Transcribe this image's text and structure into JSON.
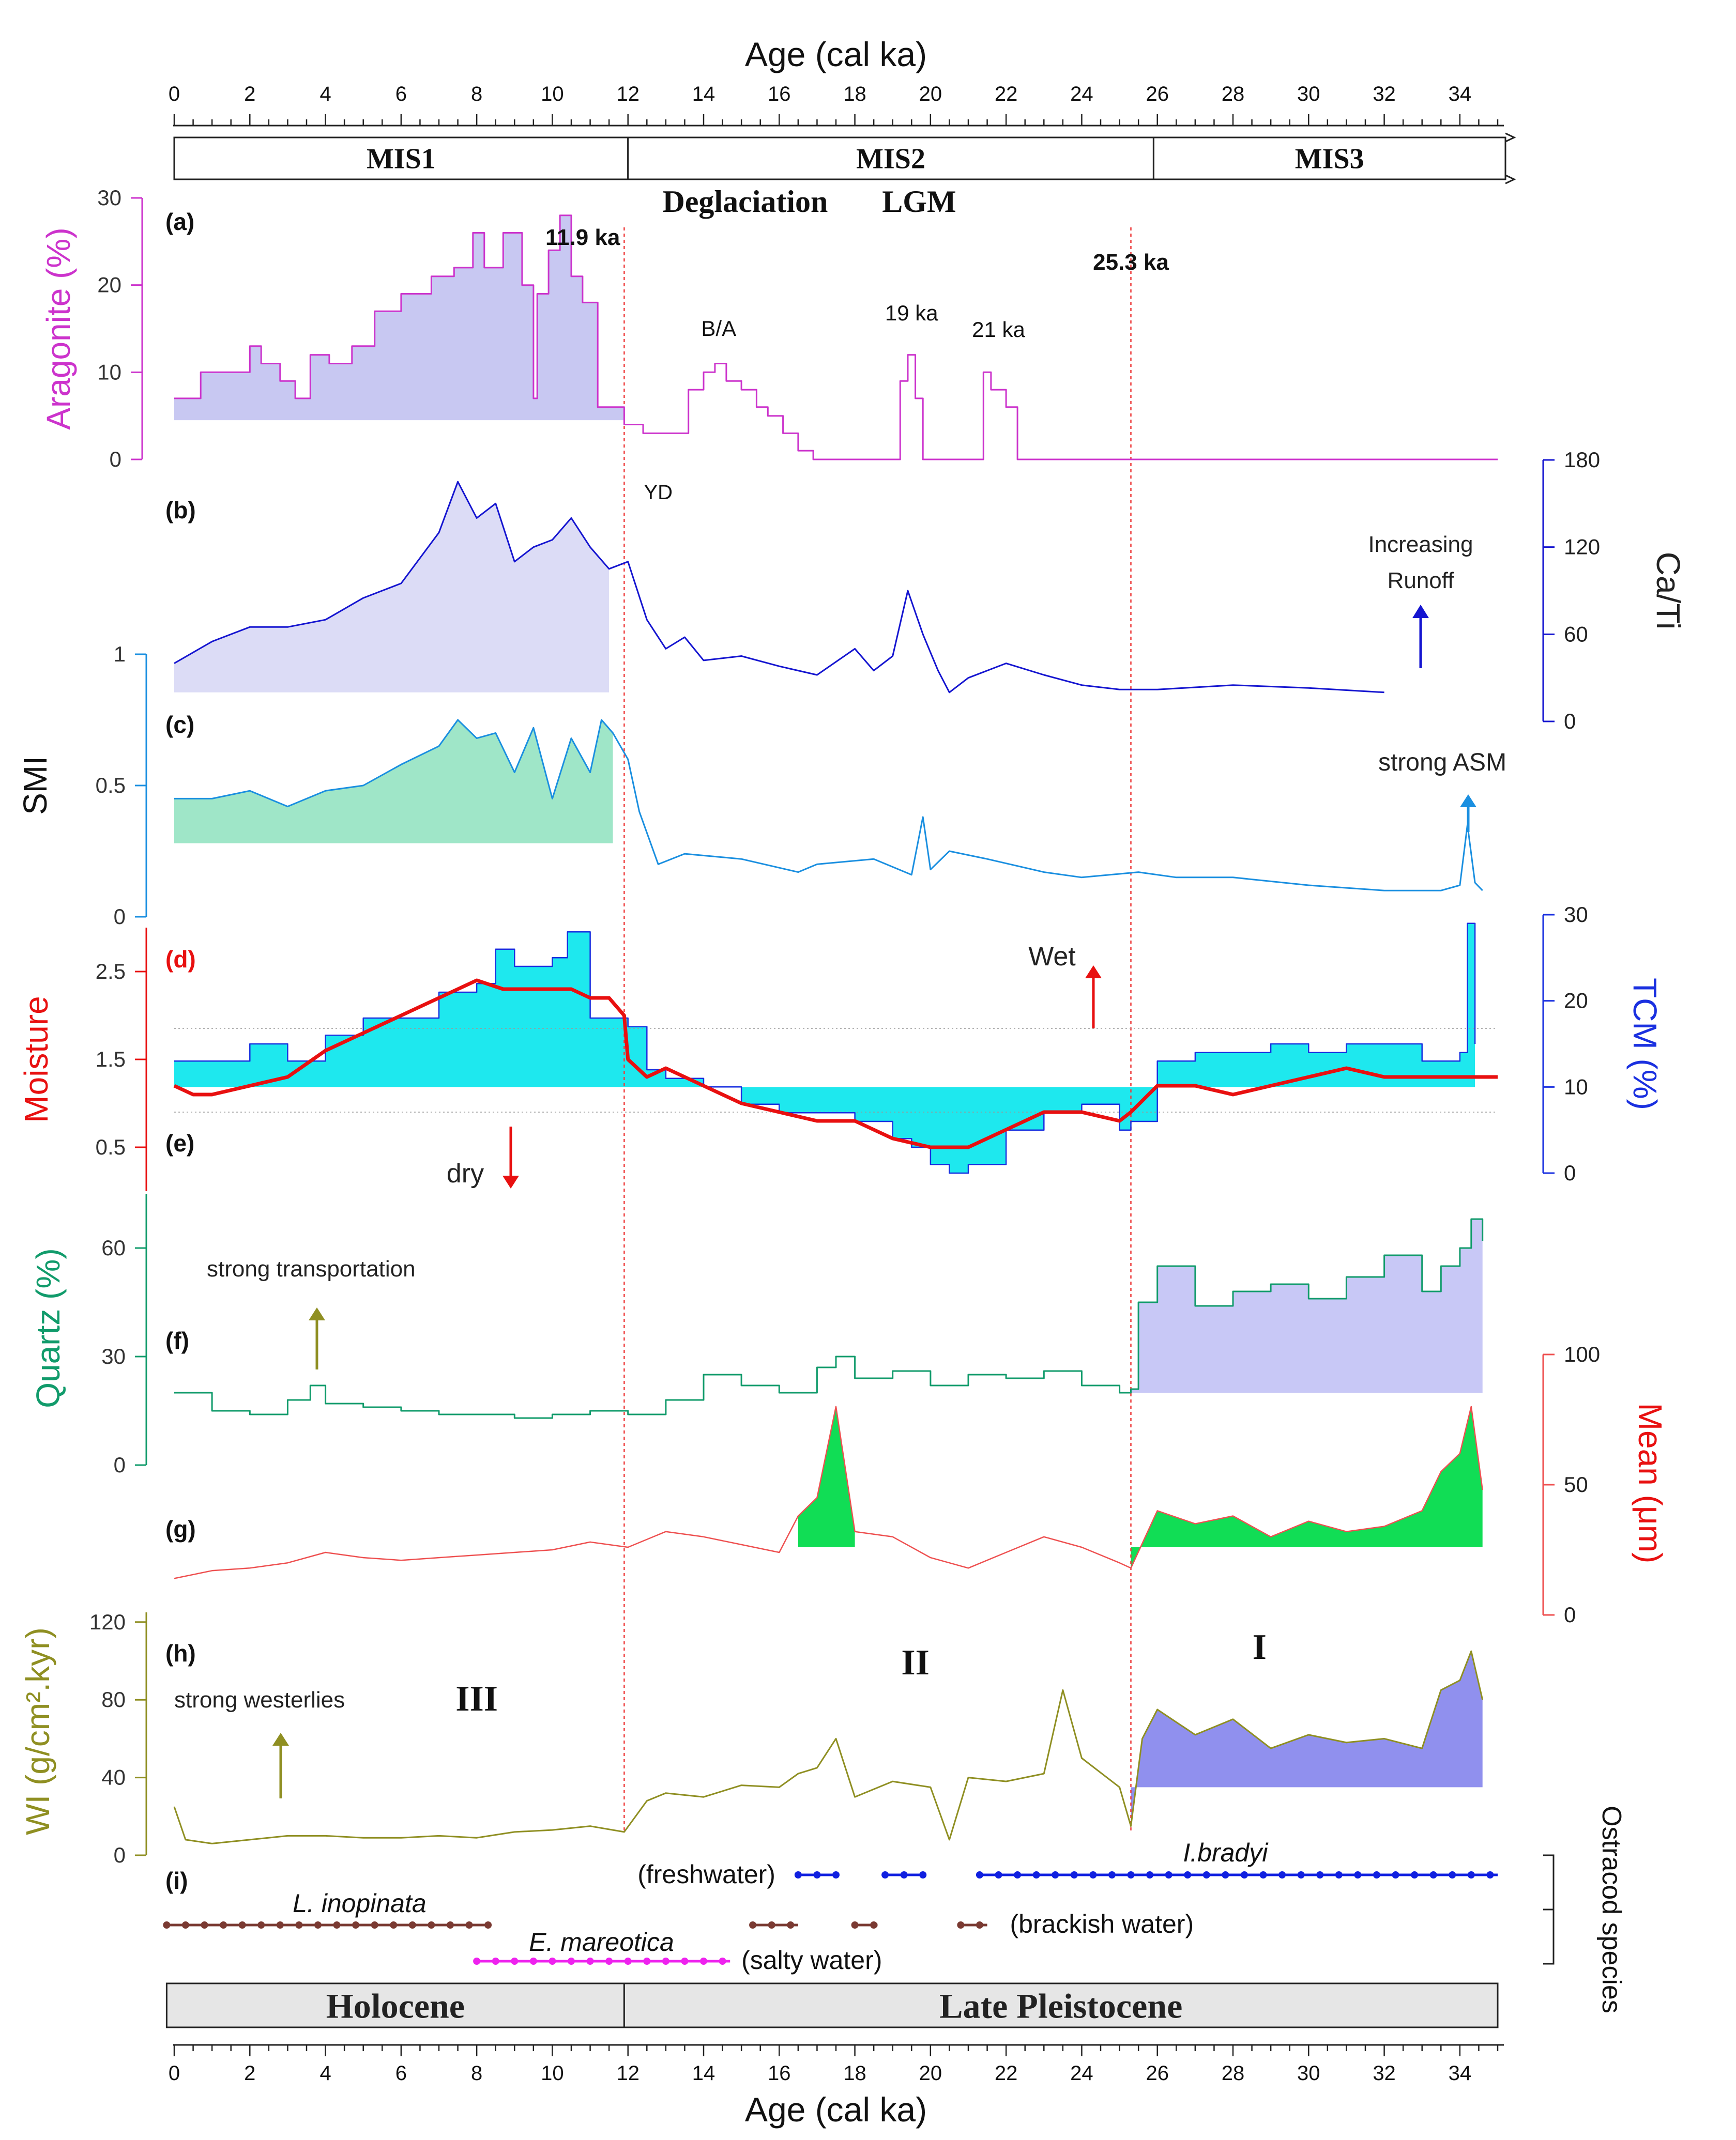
{
  "chart_data": {
    "type": "line",
    "title": "",
    "xlabel": "Age (cal ka)",
    "xlim": [
      0,
      35
    ],
    "x_ticks": [
      "0",
      "2",
      "4",
      "6",
      "8",
      "10",
      "12",
      "14",
      "16",
      "18",
      "20",
      "22",
      "24",
      "26",
      "28",
      "30",
      "32",
      "34"
    ],
    "stages": [
      {
        "label": "MIS1",
        "start": 0,
        "end": 12
      },
      {
        "label": "MIS2",
        "start": 12,
        "end": 25.9
      },
      {
        "label": "MIS3",
        "start": 25.9,
        "end": 35
      }
    ],
    "epochs": [
      {
        "label": "Holocene",
        "start": -0.2,
        "end": 11.9
      },
      {
        "label": "Late Pleistocene",
        "start": 11.9,
        "end": 35
      }
    ],
    "boundaries": [
      {
        "age": 11.9,
        "label": "11.9 ka"
      },
      {
        "age": 25.3,
        "label": "25.3 ka"
      }
    ],
    "top_annotations": [
      "Deglaciation",
      "LGM"
    ],
    "zones": [
      "III",
      "II",
      "I"
    ],
    "panels": [
      {
        "id": "a",
        "tag": "(a)",
        "ylabel": "Aragonite (%)",
        "ylim": [
          0,
          30
        ],
        "yticks": [
          "0",
          "10",
          "20",
          "30"
        ],
        "color": "#cc33cc",
        "fill": "#c8c8f2",
        "annotations": [
          "B/A",
          "19 ka",
          "21 ka",
          "YD"
        ],
        "series": {
          "x": [
            0,
            0.6,
            0.7,
            1.7,
            2.0,
            2.3,
            2.8,
            3.2,
            3.6,
            4.1,
            4.7,
            5.3,
            6.0,
            6.8,
            7.4,
            7.9,
            8.2,
            8.7,
            9.2,
            9.5,
            9.6,
            9.9,
            10.2,
            10.5,
            10.8,
            11.2,
            11.5,
            11.9,
            12.4,
            12.7,
            13.3,
            13.6,
            14.0,
            14.3,
            14.6,
            15.0,
            15.4,
            15.7,
            16.1,
            16.5,
            16.9,
            19.0,
            19.2,
            19.4,
            19.6,
            19.8,
            21.2,
            21.4,
            21.6,
            22.0,
            22.3,
            35.0
          ],
          "y": [
            7,
            7,
            10,
            10,
            13,
            11,
            9,
            7,
            12,
            11,
            13,
            17,
            19,
            21,
            22,
            26,
            22,
            26,
            20,
            7,
            19,
            24,
            28,
            21,
            18,
            6,
            6,
            4,
            3,
            3,
            3,
            8,
            10,
            11,
            9,
            8,
            6,
            5,
            3,
            1,
            0,
            0,
            9,
            12,
            7,
            0,
            0,
            10,
            8,
            6,
            0,
            0
          ]
        }
      },
      {
        "id": "b",
        "tag": "(b)",
        "ylabel": "Ca/Ti",
        "ylim": [
          0,
          180
        ],
        "yticks": [
          "0",
          "60",
          "120",
          "180"
        ],
        "color": "#1515d0",
        "fill": "#dcdcf6",
        "annotations": [
          "Increasing",
          "Runoff"
        ],
        "series": {
          "x": [
            0,
            1.0,
            2.0,
            3.0,
            4.0,
            5.0,
            6.0,
            7.0,
            7.5,
            8.0,
            8.5,
            9.0,
            9.5,
            10.0,
            10.5,
            11.0,
            11.5,
            12.0,
            12.5,
            13.0,
            13.5,
            14.0,
            15.0,
            16.0,
            17.0,
            18.0,
            18.5,
            19.0,
            19.4,
            19.8,
            20.2,
            20.5,
            21.0,
            21.5,
            22.0,
            23.0,
            24.0,
            25.0,
            26.0,
            28.0,
            30.0,
            32.0
          ],
          "y": [
            40,
            55,
            65,
            65,
            70,
            85,
            95,
            130,
            165,
            140,
            150,
            110,
            120,
            125,
            140,
            120,
            105,
            110,
            70,
            50,
            58,
            42,
            45,
            38,
            32,
            50,
            35,
            45,
            90,
            60,
            35,
            20,
            30,
            35,
            40,
            32,
            25,
            22,
            22,
            25,
            23,
            20
          ]
        }
      },
      {
        "id": "c",
        "tag": "(c)",
        "ylabel": "SMI",
        "ylim": [
          0,
          1
        ],
        "yticks": [
          "0",
          "0.5",
          "1"
        ],
        "color": "#1a8fe0",
        "fill": "#9fe6c8",
        "annotations": [
          "strong ASM"
        ],
        "series": {
          "x": [
            0,
            1.0,
            2.0,
            3.0,
            4.0,
            5.0,
            6.0,
            7.0,
            7.5,
            8.0,
            8.5,
            9.0,
            9.5,
            10.0,
            10.5,
            11.0,
            11.3,
            11.6,
            12.0,
            12.3,
            12.8,
            13.5,
            15.0,
            16.5,
            17.0,
            18.5,
            19.5,
            19.8,
            20.0,
            20.5,
            21.5,
            23.0,
            24.0,
            25.5,
            26.5,
            28.0,
            30.0,
            32.0,
            33.5,
            34.0,
            34.2,
            34.4,
            34.6
          ],
          "y": [
            0.45,
            0.45,
            0.48,
            0.42,
            0.48,
            0.5,
            0.58,
            0.65,
            0.75,
            0.68,
            0.7,
            0.55,
            0.72,
            0.45,
            0.68,
            0.55,
            0.75,
            0.7,
            0.6,
            0.4,
            0.2,
            0.24,
            0.22,
            0.17,
            0.2,
            0.22,
            0.16,
            0.38,
            0.18,
            0.25,
            0.22,
            0.17,
            0.15,
            0.17,
            0.15,
            0.15,
            0.12,
            0.1,
            0.1,
            0.12,
            0.35,
            0.13,
            0.1
          ]
        }
      },
      {
        "id": "d",
        "tag": "(d)",
        "ylabel": "Moisture",
        "ylim": [
          0,
          3
        ],
        "yticks": [
          "0.5",
          "1.5",
          "2.5"
        ],
        "color": "#e81010",
        "annotations": [
          "Wet",
          "dry"
        ],
        "series": {
          "x": [
            0,
            0.5,
            1.0,
            2.0,
            3.0,
            4.0,
            5.0,
            6.0,
            7.0,
            8.0,
            8.7,
            9.5,
            10.5,
            11.0,
            11.5,
            11.9,
            12.0,
            12.5,
            13.0,
            14.0,
            15.0,
            16.0,
            17.0,
            18.0,
            19.0,
            20.0,
            21.0,
            22.0,
            23.0,
            24.0,
            25.0,
            25.3,
            26.0,
            27.0,
            28.0,
            29.0,
            30.0,
            31.0,
            32.0,
            33.0,
            34.0,
            35.0
          ],
          "y": [
            1.2,
            1.1,
            1.1,
            1.2,
            1.3,
            1.6,
            1.8,
            2.0,
            2.2,
            2.4,
            2.3,
            2.3,
            2.3,
            2.2,
            2.2,
            2.0,
            1.5,
            1.3,
            1.4,
            1.2,
            1.0,
            0.9,
            0.8,
            0.8,
            0.6,
            0.5,
            0.5,
            0.7,
            0.9,
            0.9,
            0.8,
            0.9,
            1.2,
            1.2,
            1.1,
            1.2,
            1.3,
            1.4,
            1.3,
            1.3,
            1.3,
            1.3
          ]
        }
      },
      {
        "id": "e",
        "tag": "(e)",
        "ylabel": "TCM (%)",
        "ylim": [
          0,
          30
        ],
        "yticks": [
          "0",
          "10",
          "20",
          "30"
        ],
        "color": "#1a30e0",
        "fill": "#1ee8ee",
        "series": {
          "x": [
            0,
            1.0,
            2.0,
            3.0,
            4.0,
            5.0,
            6.0,
            7.0,
            8.0,
            8.5,
            9.0,
            10.0,
            10.4,
            11.0,
            12.0,
            12.5,
            13.0,
            14.0,
            15.0,
            16.0,
            17.0,
            18.0,
            19.0,
            19.5,
            20.0,
            20.5,
            21.0,
            22.0,
            23.0,
            24.0,
            25.0,
            25.3,
            26.0,
            27.0,
            28.0,
            29.0,
            30.0,
            31.0,
            32.0,
            33.0,
            34.0,
            34.2,
            34.4
          ],
          "y": [
            13,
            13,
            15,
            13,
            16,
            18,
            18,
            21,
            22,
            26,
            24,
            25,
            28,
            18,
            17,
            12,
            11,
            10,
            8,
            7,
            7,
            6,
            4,
            3,
            1,
            0,
            1,
            5,
            7,
            8,
            5,
            6,
            13,
            14,
            14,
            15,
            14,
            15,
            15,
            13,
            14,
            29,
            15
          ]
        }
      },
      {
        "id": "f",
        "tag": "(f)",
        "ylabel": "Quartz (%)",
        "ylim": [
          0,
          75
        ],
        "yticks": [
          "0",
          "30",
          "60"
        ],
        "color": "#119b6b",
        "fill": "#c8c8f6",
        "annotations": [
          "strong transportation"
        ],
        "series": {
          "x": [
            0,
            1.0,
            2.0,
            3.0,
            3.6,
            4.0,
            5.0,
            6.0,
            7.0,
            8.0,
            9.0,
            10.0,
            11.0,
            12.0,
            13.0,
            14.0,
            15.0,
            16.0,
            17.0,
            17.5,
            18.0,
            19.0,
            20.0,
            21.0,
            22.0,
            23.0,
            24.0,
            25.0,
            25.3,
            25.5,
            26.0,
            27.0,
            28.0,
            29.0,
            30.0,
            31.0,
            32.0,
            33.0,
            33.5,
            34.0,
            34.3,
            34.6
          ],
          "y": [
            20,
            15,
            14,
            18,
            22,
            17,
            16,
            15,
            14,
            14,
            13,
            14,
            15,
            14,
            18,
            25,
            22,
            20,
            27,
            30,
            24,
            26,
            22,
            25,
            24,
            26,
            22,
            20,
            21,
            45,
            55,
            44,
            48,
            50,
            46,
            52,
            58,
            48,
            55,
            60,
            68,
            62
          ]
        }
      },
      {
        "id": "g",
        "tag": "(g)",
        "ylabel": "Mean (μm)",
        "ylim": [
          0,
          100
        ],
        "yticks": [
          "0",
          "50",
          "100"
        ],
        "color": "#ee5050",
        "fill": "#11dd55",
        "series": {
          "x": [
            0,
            1.0,
            2.0,
            3.0,
            4.0,
            5.0,
            6.0,
            7.0,
            8.0,
            9.0,
            10.0,
            11.0,
            12.0,
            13.0,
            14.0,
            15.0,
            16.0,
            16.5,
            17.0,
            17.5,
            18.0,
            19.0,
            20.0,
            21.0,
            22.0,
            23.0,
            24.0,
            25.0,
            25.3,
            26.0,
            27.0,
            28.0,
            29.0,
            30.0,
            31.0,
            32.0,
            33.0,
            33.5,
            34.0,
            34.3,
            34.6
          ],
          "y": [
            14,
            17,
            18,
            20,
            24,
            22,
            21,
            22,
            23,
            24,
            25,
            28,
            26,
            32,
            30,
            27,
            24,
            38,
            45,
            80,
            32,
            30,
            22,
            18,
            24,
            30,
            26,
            20,
            18,
            40,
            35,
            38,
            30,
            36,
            32,
            34,
            40,
            55,
            62,
            80,
            48
          ]
        }
      },
      {
        "id": "h",
        "tag": "(h)",
        "ylabel": "WI (g/cm².kyr)",
        "ylim": [
          0,
          125
        ],
        "yticks": [
          "0",
          "40",
          "80",
          "120"
        ],
        "color": "#8f8f22",
        "fill": "#9090ee",
        "annotations": [
          "strong westerlies"
        ],
        "series": {
          "x": [
            0,
            0.3,
            1.0,
            2.0,
            3.0,
            4.0,
            5.0,
            6.0,
            7.0,
            8.0,
            9.0,
            10.0,
            11.0,
            11.9,
            12.5,
            13.0,
            14.0,
            15.0,
            16.0,
            16.5,
            17.0,
            17.5,
            18.0,
            19.0,
            20.0,
            20.5,
            21.0,
            22.0,
            23.0,
            23.5,
            24.0,
            25.0,
            25.3,
            25.6,
            26.0,
            27.0,
            28.0,
            29.0,
            30.0,
            31.0,
            32.0,
            33.0,
            33.5,
            34.0,
            34.3,
            34.6
          ],
          "y": [
            25,
            8,
            6,
            8,
            10,
            10,
            9,
            9,
            10,
            9,
            12,
            13,
            15,
            12,
            28,
            32,
            30,
            36,
            35,
            42,
            45,
            60,
            30,
            38,
            35,
            8,
            40,
            38,
            42,
            85,
            50,
            35,
            15,
            60,
            75,
            62,
            70,
            55,
            62,
            58,
            60,
            55,
            85,
            90,
            105,
            80
          ]
        }
      }
    ],
    "ostracod": {
      "label": "Ostracod species",
      "tag": "(i)",
      "species": [
        {
          "name": "I.bradyi",
          "habitat": "(freshwater)",
          "color": "#1020e0",
          "ranges": [
            [
              16.5,
              17.5
            ],
            [
              18.8,
              19.8
            ],
            [
              21.3,
              35.0
            ]
          ]
        },
        {
          "name": "L. inopinata",
          "habitat": "(brackish water)",
          "color": "#7a3a32",
          "ranges": [
            [
              -0.2,
              8.3
            ],
            [
              15.3,
              16.5
            ],
            [
              18.0,
              18.6
            ],
            [
              20.8,
              21.5
            ]
          ]
        },
        {
          "name": "E. mareotica",
          "habitat": "(salty water)",
          "color": "#ee22ee",
          "ranges": [
            [
              8.0,
              14.7
            ]
          ]
        }
      ]
    }
  }
}
